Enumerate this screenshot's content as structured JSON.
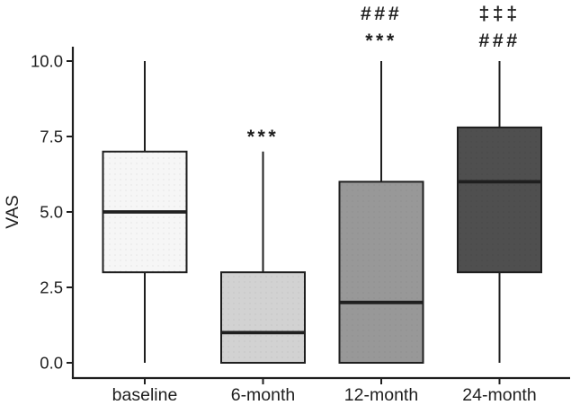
{
  "figure": {
    "background_color": "#ffffff",
    "stroke_color": "#1f1f1f"
  },
  "chart_data": {
    "type": "boxplot",
    "title": "",
    "xlabel": "",
    "ylabel": "VAS",
    "ylim": [
      0,
      10
    ],
    "yticks": [
      0.0,
      2.5,
      5.0,
      7.5,
      10.0
    ],
    "ytick_labels": [
      "0.0",
      "2.5",
      "5.0",
      "7.5",
      "10.0"
    ],
    "categories": [
      "baseline",
      "6-month",
      "12-month",
      "24-month"
    ],
    "grid": false,
    "legend_position": "none",
    "boxes": [
      {
        "category": "baseline",
        "whisker_low": 0,
        "q1": 3,
        "median": 5,
        "q3": 7,
        "whisker_high": 10,
        "fill": "#f6f6f6",
        "annotations": []
      },
      {
        "category": "6-month",
        "whisker_low": 0,
        "q1": 0,
        "median": 1,
        "q3": 3,
        "whisker_high": 7,
        "fill": "#d2d2d2",
        "annotations": [
          "***"
        ]
      },
      {
        "category": "12-month",
        "whisker_low": 0,
        "q1": 0,
        "median": 2,
        "q3": 6,
        "whisker_high": 10,
        "fill": "#989898",
        "annotations": [
          "###",
          "***"
        ]
      },
      {
        "category": "24-month",
        "whisker_low": 0,
        "q1": 3,
        "median": 6,
        "q3": 7.8,
        "whisker_high": 10,
        "fill": "#4f4f4f",
        "annotations": [
          "‡‡‡",
          "###"
        ]
      }
    ]
  }
}
